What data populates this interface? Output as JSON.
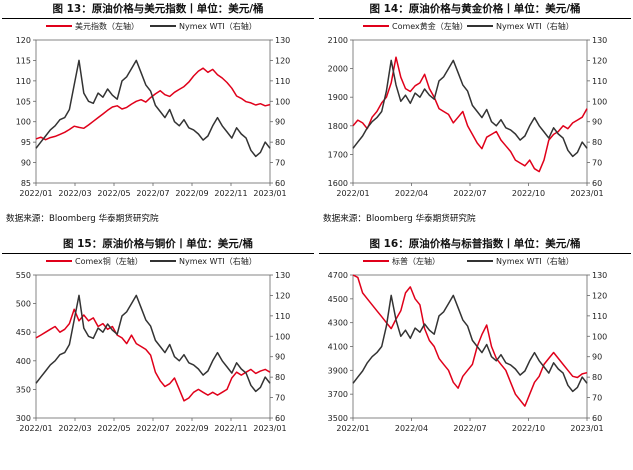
{
  "chart_data": [
    {
      "type": "line",
      "title": "图 13：原油价格与美元指数丨单位：美元/桶",
      "source": "数据来源：Bloomberg 华泰期货研究院",
      "xticks": [
        "2022/01",
        "2022/03",
        "2022/05",
        "2022/07",
        "2022/09",
        "2022/11",
        "2023/01"
      ],
      "y_left": {
        "min": 85,
        "max": 120,
        "ticks": [
          "85",
          "90",
          "95",
          "100",
          "105",
          "110",
          "115",
          "120"
        ]
      },
      "y_right": {
        "min": 60,
        "max": 130,
        "ticks": [
          "60",
          "70",
          "80",
          "90",
          "100",
          "110",
          "120",
          "130"
        ]
      },
      "series": [
        {
          "name": "美元指数（左轴）",
          "axis": "left",
          "color": "#e0001a",
          "values": [
            95.8,
            96.2,
            95.6,
            96.1,
            96.4,
            96.9,
            97.4,
            98.1,
            98.9,
            98.6,
            98.4,
            99.2,
            100.1,
            101.0,
            101.9,
            102.8,
            103.6,
            103.9,
            103.1,
            103.5,
            104.3,
            105.0,
            105.4,
            104.8,
            105.9,
            106.8,
            107.6,
            106.6,
            106.2,
            107.2,
            107.9,
            108.6,
            109.7,
            111.2,
            112.4,
            113.1,
            112.1,
            112.8,
            111.5,
            110.7,
            109.6,
            108.2,
            106.3,
            105.7,
            104.9,
            104.6,
            104.1,
            104.4,
            103.9,
            104.2
          ]
        },
        {
          "name": "Nymex WTI（右轴）",
          "axis": "right",
          "color": "#333333",
          "values": [
            77,
            80,
            83,
            86,
            88,
            91,
            92,
            96,
            108,
            120,
            104,
            100,
            99,
            104,
            102,
            106,
            103,
            101,
            110,
            112,
            116,
            120,
            114,
            108,
            105,
            98,
            95,
            92,
            96,
            90,
            88,
            91,
            87,
            86,
            84,
            81,
            83,
            88,
            92,
            88,
            85,
            82,
            87,
            84,
            82,
            76,
            73,
            75,
            80,
            77
          ]
        }
      ]
    },
    {
      "type": "line",
      "title": "图 14：原油价格与黄金价格丨单位：美元/桶",
      "source": "数据来源：Bloomberg 华泰期货研究院",
      "xticks": [
        "2022/01",
        "2022/04",
        "2022/07",
        "2022/10",
        "2023/01"
      ],
      "y_left": {
        "min": 1600,
        "max": 2100,
        "ticks": [
          "1600",
          "1700",
          "1800",
          "1900",
          "2000",
          "2100"
        ]
      },
      "y_right": {
        "min": 60,
        "max": 130,
        "ticks": [
          "60",
          "70",
          "80",
          "90",
          "100",
          "110",
          "120",
          "130"
        ]
      },
      "series": [
        {
          "name": "Comex黄金（左轴）",
          "axis": "left",
          "color": "#e0001a",
          "values": [
            1800,
            1820,
            1810,
            1790,
            1830,
            1850,
            1880,
            1900,
            1950,
            2040,
            1970,
            1930,
            1920,
            1940,
            1950,
            1980,
            1930,
            1900,
            1860,
            1850,
            1840,
            1810,
            1830,
            1850,
            1800,
            1770,
            1740,
            1720,
            1760,
            1770,
            1780,
            1750,
            1730,
            1710,
            1680,
            1670,
            1660,
            1680,
            1650,
            1640,
            1680,
            1750,
            1770,
            1780,
            1800,
            1790,
            1810,
            1820,
            1830,
            1860
          ]
        },
        {
          "name": "Nymex WTI（右轴）",
          "axis": "right",
          "color": "#333333",
          "values": [
            77,
            80,
            83,
            87,
            90,
            92,
            95,
            105,
            120,
            108,
            100,
            103,
            99,
            104,
            102,
            106,
            103,
            101,
            110,
            112,
            116,
            120,
            114,
            108,
            105,
            98,
            95,
            92,
            96,
            90,
            88,
            91,
            87,
            86,
            84,
            81,
            83,
            88,
            92,
            88,
            85,
            82,
            87,
            84,
            82,
            76,
            73,
            75,
            80,
            77
          ]
        }
      ]
    },
    {
      "type": "line",
      "title": "图 15：原油价格与铜价丨单位：美元/桶",
      "source": "",
      "xticks": [
        "2022/01",
        "2022/03",
        "2022/05",
        "2022/07",
        "2022/09",
        "2022/11",
        "2023/01"
      ],
      "y_left": {
        "min": 300,
        "max": 550,
        "ticks": [
          "300",
          "350",
          "400",
          "450",
          "500",
          "550"
        ]
      },
      "y_right": {
        "min": 60,
        "max": 130,
        "ticks": [
          "60",
          "70",
          "80",
          "90",
          "100",
          "110",
          "120",
          "130"
        ]
      },
      "series": [
        {
          "name": "Comex铜（左轴）",
          "axis": "left",
          "color": "#e0001a",
          "values": [
            440,
            445,
            450,
            455,
            460,
            450,
            455,
            465,
            490,
            470,
            480,
            470,
            475,
            460,
            465,
            455,
            460,
            445,
            440,
            430,
            445,
            430,
            425,
            420,
            410,
            380,
            365,
            355,
            360,
            370,
            350,
            330,
            335,
            345,
            350,
            345,
            340,
            345,
            340,
            345,
            350,
            370,
            380,
            375,
            380,
            385,
            378,
            382,
            385,
            380
          ]
        },
        {
          "name": "Nymex WTI（右轴）",
          "axis": "right",
          "color": "#333333",
          "values": [
            77,
            80,
            83,
            86,
            88,
            91,
            92,
            96,
            108,
            120,
            104,
            100,
            99,
            104,
            102,
            106,
            103,
            101,
            110,
            112,
            116,
            120,
            114,
            108,
            105,
            98,
            95,
            92,
            96,
            90,
            88,
            91,
            87,
            86,
            84,
            81,
            83,
            88,
            92,
            88,
            85,
            82,
            87,
            84,
            82,
            76,
            73,
            75,
            80,
            77
          ]
        }
      ]
    },
    {
      "type": "line",
      "title": "图 16：原油价格与标普指数丨单位：美元/桶",
      "source": "",
      "xticks": [
        "2022/01",
        "2022/04",
        "2022/07",
        "2022/10",
        "2023/01"
      ],
      "y_left": {
        "min": 3500,
        "max": 4700,
        "ticks": [
          "3500",
          "3700",
          "3900",
          "4100",
          "4300",
          "4500",
          "4700"
        ]
      },
      "y_right": {
        "min": 60,
        "max": 130,
        "ticks": [
          "60",
          "70",
          "80",
          "90",
          "100",
          "110",
          "120",
          "130"
        ]
      },
      "series": [
        {
          "name": "标普（左轴）",
          "axis": "left",
          "color": "#e0001a",
          "values": [
            4700,
            4680,
            4550,
            4500,
            4450,
            4400,
            4350,
            4300,
            4250,
            4330,
            4400,
            4550,
            4600,
            4500,
            4450,
            4250,
            4150,
            4100,
            4000,
            3950,
            3900,
            3800,
            3750,
            3850,
            3900,
            3950,
            4100,
            4200,
            4280,
            4100,
            4000,
            3950,
            3900,
            3800,
            3700,
            3650,
            3600,
            3700,
            3800,
            3850,
            3950,
            4000,
            4050,
            4000,
            3950,
            3900,
            3850,
            3840,
            3870,
            3880
          ]
        },
        {
          "name": "Nymex WTI（右轴）",
          "axis": "right",
          "color": "#333333",
          "values": [
            77,
            80,
            83,
            87,
            90,
            92,
            95,
            105,
            120,
            108,
            100,
            103,
            99,
            104,
            102,
            106,
            103,
            101,
            110,
            112,
            116,
            120,
            114,
            108,
            105,
            98,
            95,
            92,
            96,
            90,
            88,
            91,
            87,
            86,
            84,
            81,
            83,
            88,
            92,
            88,
            85,
            82,
            87,
            84,
            82,
            76,
            73,
            75,
            80,
            77
          ]
        }
      ]
    }
  ]
}
